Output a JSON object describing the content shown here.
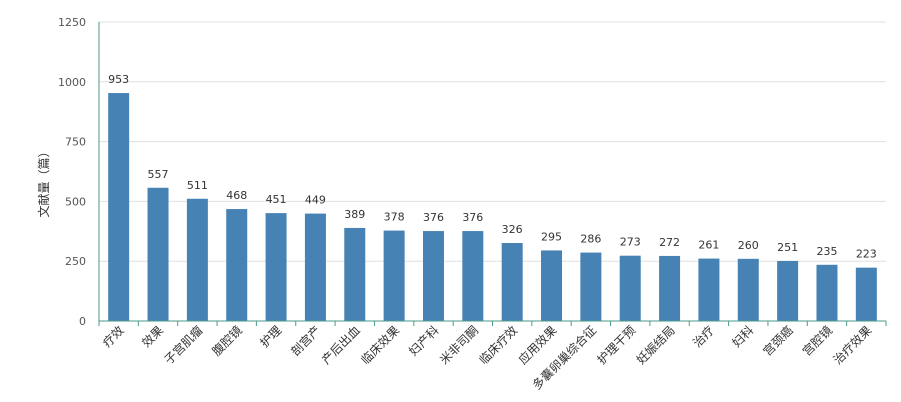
{
  "chart_data": {
    "type": "bar",
    "title": "",
    "xlabel": "",
    "ylabel": "文献量（篇）",
    "ylim": [
      0,
      1250
    ],
    "yticks": [
      0,
      250,
      500,
      750,
      1000,
      1250
    ],
    "grid": true,
    "categories": [
      "疗效",
      "效果",
      "子宫肌瘤",
      "腹腔镜",
      "护理",
      "剖宫产",
      "产后出血",
      "临床效果",
      "妇产科",
      "米非司酮",
      "临床疗效",
      "应用效果",
      "多囊卵巢综合征",
      "护理干预",
      "妊娠结局",
      "治疗",
      "妇科",
      "宫颈癌",
      "宫腔镜",
      "治疗效果"
    ],
    "values": [
      953,
      557,
      511,
      468,
      451,
      449,
      389,
      378,
      376,
      376,
      326,
      295,
      286,
      273,
      272,
      261,
      260,
      251,
      235,
      223
    ],
    "colors": {
      "bar": "#4682b4",
      "axis": "#4a9a8a",
      "grid": "#e0e0e0"
    }
  }
}
